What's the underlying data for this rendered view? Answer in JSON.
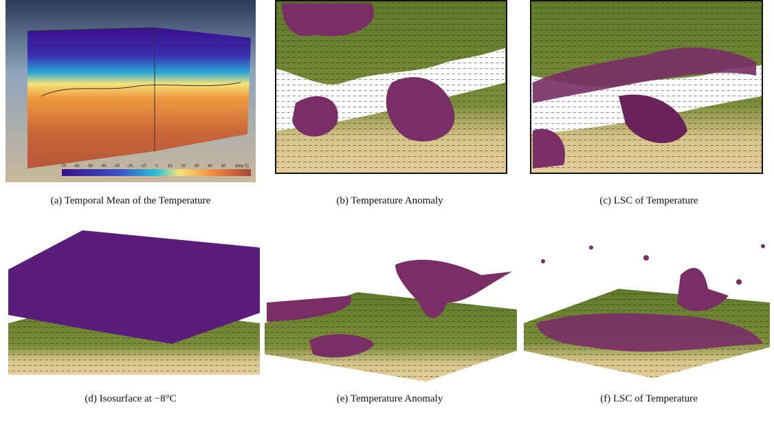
{
  "panels": [
    {
      "caption": "(a)  Temporal Mean of the Temperature",
      "colorbar_labels": [
        "-70",
        "-60",
        "-50",
        "-40",
        "-30",
        "-20",
        "-10",
        "0",
        "10",
        "20",
        "30",
        "40",
        "50",
        "[deg C]"
      ]
    },
    {
      "caption": "(b)  Temperature Anomaly"
    },
    {
      "caption": "(c)  LSC of Temperature"
    },
    {
      "caption": "(d)  Isosurface at −8°C"
    },
    {
      "caption": "(e)  Temperature Anomaly"
    },
    {
      "caption": "(f)  LSC of Temperature"
    }
  ]
}
